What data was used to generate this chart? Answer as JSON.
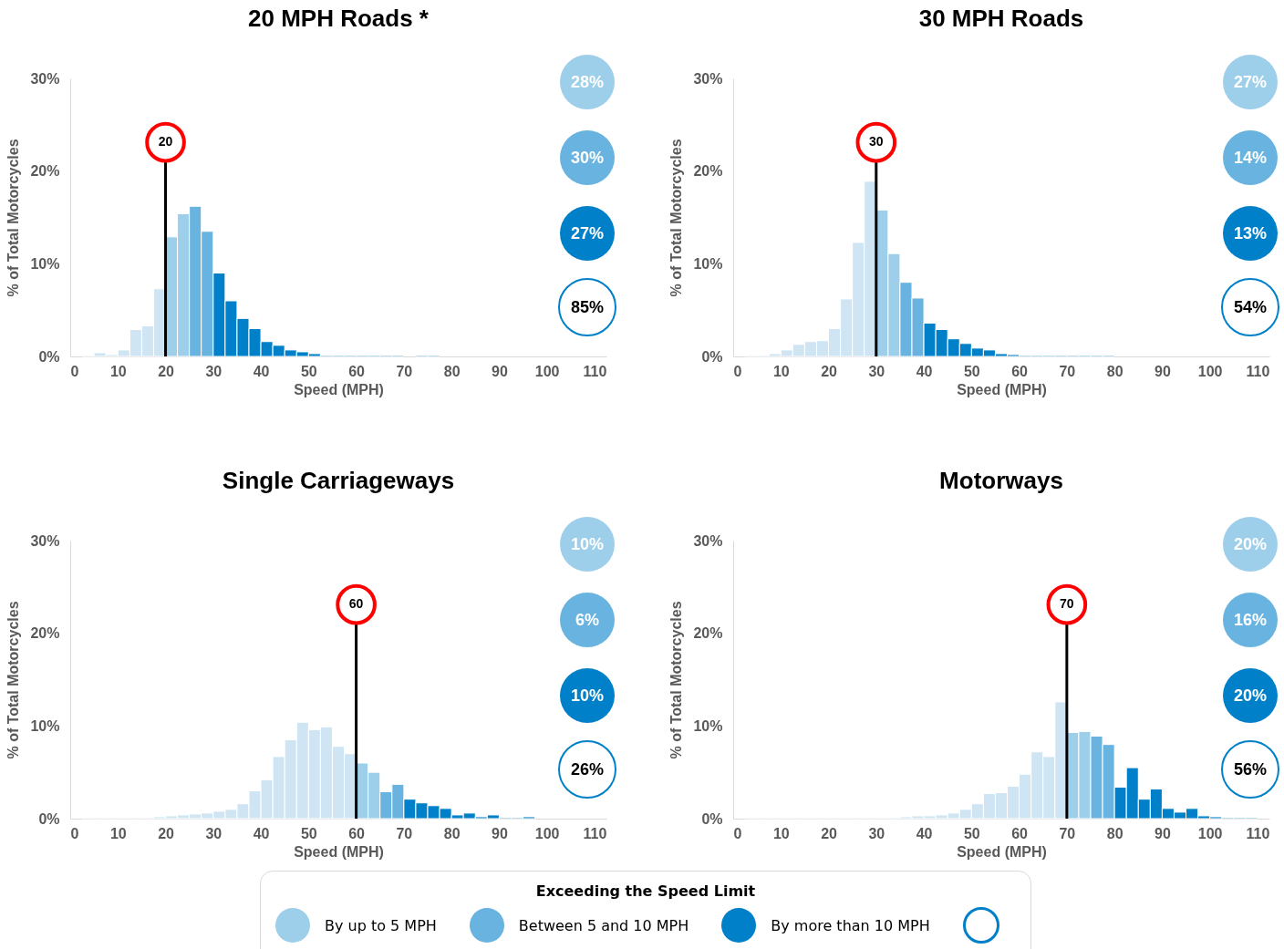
{
  "chart_data": [
    {
      "type": "histogram",
      "title": "20 MPH Roads *",
      "xlabel": "Speed (MPH)",
      "ylabel": "% of Total Motorcycles",
      "bins": [
        0,
        2.5,
        5,
        7.5,
        10,
        12.5,
        15,
        17.5,
        20,
        22.5,
        25,
        27.5,
        30,
        32.5,
        35,
        37.5,
        40,
        42.5,
        45,
        47.5,
        50,
        52.5,
        55,
        57.5,
        60,
        62.5,
        65,
        67.5,
        70,
        72.5,
        75,
        77.5,
        80,
        82.5,
        85,
        87.5,
        90,
        92.5,
        95,
        97.5,
        100,
        102.5,
        105,
        107.5,
        110,
        112.5
      ],
      "xlim": [
        0,
        112.5
      ],
      "xticks": [
        0,
        10,
        20,
        30,
        40,
        50,
        60,
        70,
        80,
        90,
        100,
        110
      ],
      "ylim": [
        0,
        30
      ],
      "yticks": [
        {
          "value": 0,
          "label": "0%"
        },
        {
          "value": 10,
          "label": "10%"
        },
        {
          "value": 20,
          "label": "20%"
        },
        {
          "value": 30,
          "label": "30%"
        }
      ],
      "series": [
        {
          "color": "#cfe5f3",
          "values": [
            0,
            0.1,
            0.4,
            0.2,
            0.7,
            2.9,
            3.3,
            7.3,
            null,
            null,
            null,
            null,
            null,
            null,
            null,
            null,
            null,
            null,
            null,
            null,
            null,
            null,
            null,
            null,
            null,
            null,
            null,
            null,
            null,
            null,
            null,
            null,
            null,
            null,
            null,
            null,
            null,
            null,
            null,
            null,
            null,
            null,
            null,
            null,
            null
          ]
        },
        {
          "name": "By up to 5 MPH",
          "color": "#9dcfeb",
          "values": [
            null,
            null,
            null,
            null,
            null,
            null,
            null,
            null,
            12.9,
            15.4,
            null,
            null,
            null,
            null,
            null,
            null,
            null,
            null,
            null,
            null,
            null,
            null,
            null,
            null,
            null,
            null,
            null,
            null,
            null,
            null,
            null,
            null,
            null,
            null,
            null,
            null,
            null,
            null,
            null,
            null,
            null,
            null,
            null,
            null,
            null
          ]
        },
        {
          "name": "Between 5 and 10 MPH",
          "color": "#68b3e0",
          "values": [
            null,
            null,
            null,
            null,
            null,
            null,
            null,
            null,
            null,
            null,
            16.2,
            13.5,
            null,
            null,
            null,
            null,
            null,
            null,
            null,
            null,
            null,
            null,
            null,
            null,
            null,
            null,
            null,
            null,
            null,
            null,
            null,
            null,
            null,
            null,
            null,
            null,
            null,
            null,
            null,
            null,
            null,
            null,
            null,
            null,
            null
          ]
        },
        {
          "name": "By more than 10 MPH",
          "color": "#0080c9",
          "values": [
            null,
            null,
            null,
            null,
            null,
            null,
            null,
            null,
            null,
            null,
            null,
            null,
            9.0,
            6.0,
            4.1,
            3.0,
            1.6,
            1.2,
            0.7,
            0.5,
            0.3,
            0.1,
            0.1,
            0.1,
            0.1,
            0.1,
            0.1,
            0.1,
            0,
            0.1,
            0.1,
            0,
            0,
            0,
            0,
            0,
            0,
            0,
            0,
            0,
            0,
            0,
            0,
            0,
            0
          ]
        }
      ],
      "ref_lines": [
        {
          "axis": "x",
          "value": 20,
          "label": "20",
          "color": "#000000"
        }
      ],
      "annotations": [
        "28%",
        "30%",
        "27%",
        "85%"
      ],
      "legend": "bottom",
      "legend_title": "Exceeding the Speed Limit"
    },
    {
      "type": "histogram",
      "title": "30 MPH Roads",
      "xlabel": "Speed (MPH)",
      "ylabel": "% of Total Motorcycles",
      "bins": [
        0,
        2.5,
        5,
        7.5,
        10,
        12.5,
        15,
        17.5,
        20,
        22.5,
        25,
        27.5,
        30,
        32.5,
        35,
        37.5,
        40,
        42.5,
        45,
        47.5,
        50,
        52.5,
        55,
        57.5,
        60,
        62.5,
        65,
        67.5,
        70,
        72.5,
        75,
        77.5,
        80,
        82.5,
        85,
        87.5,
        90,
        92.5,
        95,
        97.5,
        100,
        102.5,
        105,
        107.5,
        110,
        112.5
      ],
      "xlim": [
        0,
        112.5
      ],
      "xticks": [
        0,
        10,
        20,
        30,
        40,
        50,
        60,
        70,
        80,
        90,
        100,
        110
      ],
      "ylim": [
        0,
        30
      ],
      "yticks": [
        {
          "value": 0,
          "label": "0%"
        },
        {
          "value": 10,
          "label": "10%"
        },
        {
          "value": 20,
          "label": "20%"
        },
        {
          "value": 30,
          "label": "30%"
        }
      ],
      "series": [
        {
          "color": "#cfe5f3",
          "values": [
            0,
            0.1,
            0.1,
            0.3,
            0.7,
            1.3,
            1.6,
            1.7,
            3.0,
            6.2,
            12.3,
            18.9,
            null,
            null,
            null,
            null,
            null,
            null,
            null,
            null,
            null,
            null,
            null,
            null,
            null,
            null,
            null,
            null,
            null,
            null,
            null,
            null,
            null,
            null,
            null,
            null,
            null,
            null,
            null,
            null,
            null,
            null,
            null,
            null,
            null
          ]
        },
        {
          "name": "By up to 5 MPH",
          "color": "#9dcfeb",
          "values": [
            null,
            null,
            null,
            null,
            null,
            null,
            null,
            null,
            null,
            null,
            null,
            null,
            15.8,
            11.1,
            null,
            null,
            null,
            null,
            null,
            null,
            null,
            null,
            null,
            null,
            null,
            null,
            null,
            null,
            null,
            null,
            null,
            null,
            null,
            null,
            null,
            null,
            null,
            null,
            null,
            null,
            null,
            null,
            null,
            null,
            null
          ]
        },
        {
          "name": "Between 5 and 10 MPH",
          "color": "#68b3e0",
          "values": [
            null,
            null,
            null,
            null,
            null,
            null,
            null,
            null,
            null,
            null,
            null,
            null,
            null,
            null,
            8.0,
            6.3,
            null,
            null,
            null,
            null,
            null,
            null,
            null,
            null,
            null,
            null,
            null,
            null,
            null,
            null,
            null,
            null,
            null,
            null,
            null,
            null,
            null,
            null,
            null,
            null,
            null,
            null,
            null,
            null,
            null
          ]
        },
        {
          "name": "By more than 10 MPH",
          "color": "#0080c9",
          "values": [
            null,
            null,
            null,
            null,
            null,
            null,
            null,
            null,
            null,
            null,
            null,
            null,
            null,
            null,
            null,
            null,
            3.6,
            2.9,
            1.9,
            1.4,
            0.9,
            0.7,
            0.3,
            0.2,
            0.1,
            0.1,
            0.1,
            0.1,
            0.1,
            0.1,
            0.1,
            0.1,
            0,
            0,
            0,
            0,
            0,
            0,
            0,
            0,
            0,
            0,
            0,
            0,
            0
          ]
        }
      ],
      "ref_lines": [
        {
          "axis": "x",
          "value": 30,
          "label": "30",
          "color": "#000000"
        }
      ],
      "annotations": [
        "27%",
        "14%",
        "13%",
        "54%"
      ]
    },
    {
      "type": "histogram",
      "title": "Single Carriageways",
      "xlabel": "Speed (MPH)",
      "ylabel": "% of Total Motorcycles",
      "bins": [
        0,
        2.5,
        5,
        7.5,
        10,
        12.5,
        15,
        17.5,
        20,
        22.5,
        25,
        27.5,
        30,
        32.5,
        35,
        37.5,
        40,
        42.5,
        45,
        47.5,
        50,
        52.5,
        55,
        57.5,
        60,
        62.5,
        65,
        67.5,
        70,
        72.5,
        75,
        77.5,
        80,
        82.5,
        85,
        87.5,
        90,
        92.5,
        95,
        97.5,
        100,
        102.5,
        105,
        107.5,
        110,
        112.5
      ],
      "xlim": [
        0,
        112.5
      ],
      "xticks": [
        0,
        10,
        20,
        30,
        40,
        50,
        60,
        70,
        80,
        90,
        100,
        110
      ],
      "ylim": [
        0,
        30
      ],
      "yticks": [
        {
          "value": 0,
          "label": "0%"
        },
        {
          "value": 10,
          "label": "10%"
        },
        {
          "value": 20,
          "label": "20%"
        },
        {
          "value": 30,
          "label": "30%"
        }
      ],
      "series": [
        {
          "color": "#cfe5f3",
          "values": [
            0,
            0.1,
            0.1,
            0.1,
            0.1,
            0.1,
            0.1,
            0.2,
            0.3,
            0.4,
            0.5,
            0.6,
            0.8,
            1.0,
            1.6,
            3.0,
            4.2,
            6.7,
            8.5,
            10.4,
            9.6,
            9.9,
            7.8,
            7.0,
            null,
            null,
            null,
            null,
            null,
            null,
            null,
            null,
            null,
            null,
            null,
            null,
            null,
            null,
            null,
            null,
            null,
            null,
            null,
            null,
            null
          ]
        },
        {
          "name": "By up to 5 MPH",
          "color": "#9dcfeb",
          "values": [
            null,
            null,
            null,
            null,
            null,
            null,
            null,
            null,
            null,
            null,
            null,
            null,
            null,
            null,
            null,
            null,
            null,
            null,
            null,
            null,
            null,
            null,
            null,
            null,
            6.0,
            5.0,
            null,
            null,
            null,
            null,
            null,
            null,
            null,
            null,
            null,
            null,
            null,
            null,
            null,
            null,
            null,
            null,
            null,
            null,
            null
          ]
        },
        {
          "name": "Between 5 and 10 MPH",
          "color": "#68b3e0",
          "values": [
            null,
            null,
            null,
            null,
            null,
            null,
            null,
            null,
            null,
            null,
            null,
            null,
            null,
            null,
            null,
            null,
            null,
            null,
            null,
            null,
            null,
            null,
            null,
            null,
            null,
            null,
            2.9,
            3.7,
            null,
            null,
            null,
            null,
            null,
            null,
            null,
            null,
            null,
            null,
            null,
            null,
            null,
            null,
            null,
            null,
            null
          ]
        },
        {
          "name": "By more than 10 MPH",
          "color": "#0080c9",
          "values": [
            null,
            null,
            null,
            null,
            null,
            null,
            null,
            null,
            null,
            null,
            null,
            null,
            null,
            null,
            null,
            null,
            null,
            null,
            null,
            null,
            null,
            null,
            null,
            null,
            null,
            null,
            null,
            null,
            2.1,
            1.7,
            1.4,
            1.1,
            0.4,
            0.6,
            0.2,
            0.4,
            0.1,
            0.1,
            0.2,
            0,
            0,
            0,
            0,
            0,
            0
          ]
        }
      ],
      "ref_lines": [
        {
          "axis": "x",
          "value": 60,
          "label": "60",
          "color": "#000000"
        }
      ],
      "annotations": [
        "10%",
        "6%",
        "10%",
        "26%"
      ]
    },
    {
      "type": "histogram",
      "title": "Motorways",
      "xlabel": "Speed (MPH)",
      "ylabel": "% of Total Motorcycles",
      "bins": [
        0,
        2.5,
        5,
        7.5,
        10,
        12.5,
        15,
        17.5,
        20,
        22.5,
        25,
        27.5,
        30,
        32.5,
        35,
        37.5,
        40,
        42.5,
        45,
        47.5,
        50,
        52.5,
        55,
        57.5,
        60,
        62.5,
        65,
        67.5,
        70,
        72.5,
        75,
        77.5,
        80,
        82.5,
        85,
        87.5,
        90,
        92.5,
        95,
        97.5,
        100,
        102.5,
        105,
        107.5,
        110,
        112.5
      ],
      "xlim": [
        0,
        112.5
      ],
      "xticks": [
        0,
        10,
        20,
        30,
        40,
        50,
        60,
        70,
        80,
        90,
        100,
        110
      ],
      "ylim": [
        0,
        30
      ],
      "yticks": [
        {
          "value": 0,
          "label": "0%"
        },
        {
          "value": 10,
          "label": "10%"
        },
        {
          "value": 20,
          "label": "20%"
        },
        {
          "value": 30,
          "label": "30%"
        }
      ],
      "series": [
        {
          "color": "#cfe5f3",
          "values": [
            0,
            0.1,
            0.1,
            0.1,
            0.1,
            0.1,
            0.1,
            0.1,
            0.1,
            0.1,
            0.1,
            0.1,
            0.1,
            0.1,
            0.2,
            0.3,
            0.3,
            0.4,
            0.6,
            1.0,
            1.6,
            2.7,
            2.8,
            3.5,
            4.8,
            7.2,
            6.7,
            12.6,
            null,
            null,
            null,
            null,
            null,
            null,
            null,
            null,
            null,
            null,
            null,
            null,
            null,
            null,
            null,
            null,
            null
          ]
        },
        {
          "name": "By up to 5 MPH",
          "color": "#9dcfeb",
          "values": [
            null,
            null,
            null,
            null,
            null,
            null,
            null,
            null,
            null,
            null,
            null,
            null,
            null,
            null,
            null,
            null,
            null,
            null,
            null,
            null,
            null,
            null,
            null,
            null,
            null,
            null,
            null,
            null,
            9.3,
            9.4,
            null,
            null,
            null,
            null,
            null,
            null,
            null,
            null,
            null,
            null,
            null,
            null,
            null,
            null,
            null
          ]
        },
        {
          "name": "Between 5 and 10 MPH",
          "color": "#68b3e0",
          "values": [
            null,
            null,
            null,
            null,
            null,
            null,
            null,
            null,
            null,
            null,
            null,
            null,
            null,
            null,
            null,
            null,
            null,
            null,
            null,
            null,
            null,
            null,
            null,
            null,
            null,
            null,
            null,
            null,
            null,
            null,
            8.9,
            8.0,
            null,
            null,
            null,
            null,
            null,
            null,
            null,
            null,
            null,
            null,
            null,
            null,
            null
          ]
        },
        {
          "name": "By more than 10 MPH",
          "color": "#0080c9",
          "values": [
            null,
            null,
            null,
            null,
            null,
            null,
            null,
            null,
            null,
            null,
            null,
            null,
            null,
            null,
            null,
            null,
            null,
            null,
            null,
            null,
            null,
            null,
            null,
            null,
            null,
            null,
            null,
            null,
            null,
            null,
            null,
            null,
            3.4,
            5.5,
            2.1,
            3.2,
            1.1,
            0.7,
            1.1,
            0.3,
            0.2,
            0.1,
            0.1,
            0.1,
            0
          ]
        }
      ],
      "ref_lines": [
        {
          "axis": "x",
          "value": 70,
          "label": "70",
          "color": "#000000"
        }
      ],
      "annotations": [
        "20%",
        "16%",
        "20%",
        "56%"
      ]
    }
  ]
}
